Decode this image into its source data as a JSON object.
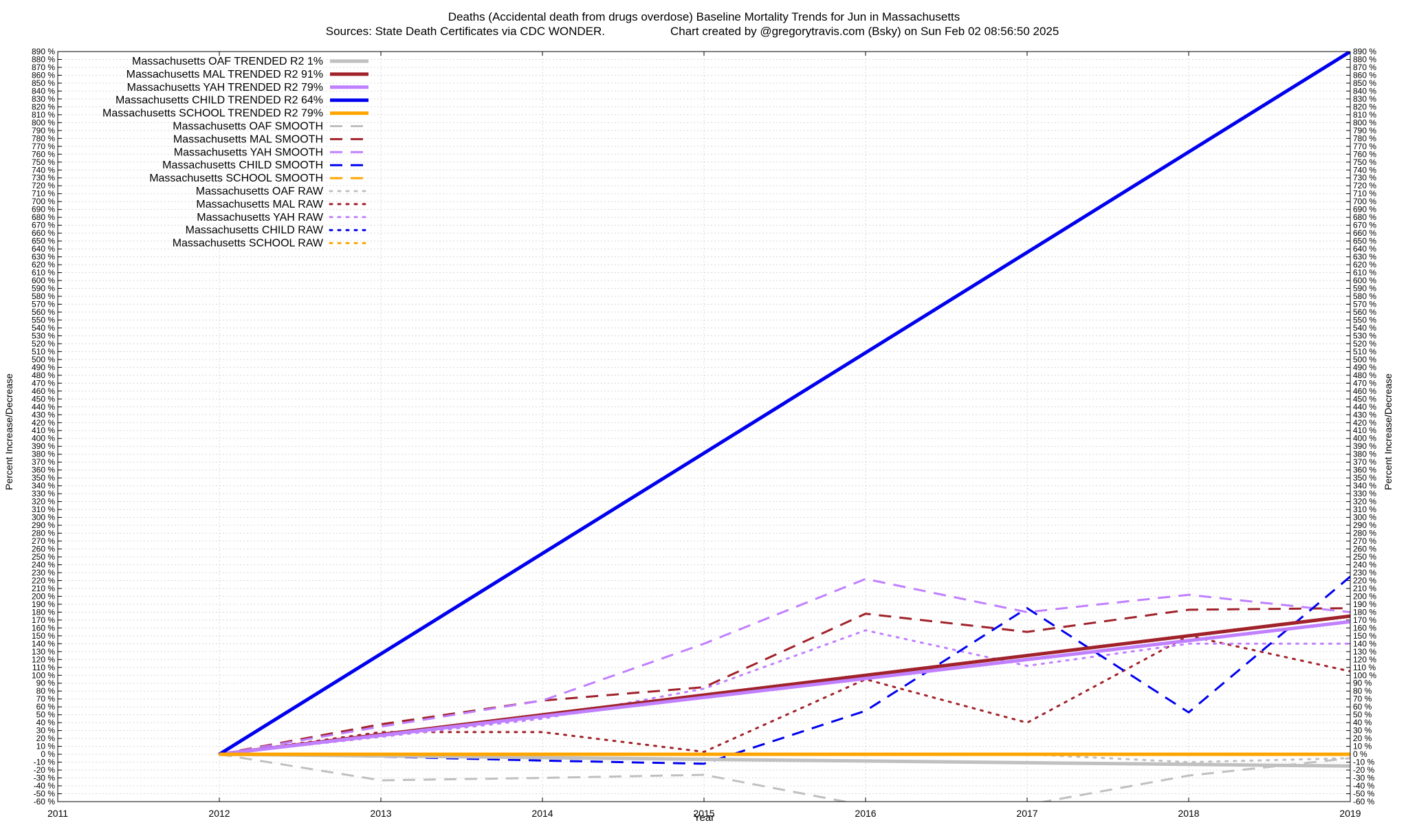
{
  "chart_data": {
    "type": "line",
    "title": "Deaths (Accidental death from drugs overdose)  Baseline Mortality Trends for Jun in Massachusetts",
    "subtitle_left": "Sources: State Death Certificates via CDC WONDER.",
    "subtitle_right": "Chart created by @gregorytravis.com (Bsky) on Sun Feb 02 08:56:50 2025",
    "xlabel": "Year",
    "ylabel_left": "Percent Increase/Decrease",
    "ylabel_right": "Percent Increase/Decrease",
    "xlim": [
      2011,
      2019
    ],
    "ylim": [
      -60,
      890
    ],
    "x_ticks": [
      2011,
      2012,
      2013,
      2014,
      2015,
      2016,
      2017,
      2018,
      2019
    ],
    "x_tick_labels": [
      "2011",
      "2012",
      "2013",
      "2014",
      "2015",
      "2016",
      "2017",
      "2018",
      "2019"
    ],
    "y_tick_step": 10,
    "y_tick_suffix": " %",
    "grid": true,
    "legend_position": "top-left",
    "series": [
      {
        "name": "Massachusetts OAF TRENDED R2  1%",
        "style": "solid",
        "color": "#c0c0c0",
        "x": [
          2012,
          2019
        ],
        "values": [
          0,
          -15
        ]
      },
      {
        "name": "Massachusetts MAL TRENDED R2  91%",
        "style": "solid",
        "color": "#a0222a",
        "x": [
          2012,
          2019
        ],
        "values": [
          0,
          175
        ]
      },
      {
        "name": "Massachusetts YAH TRENDED R2  79%",
        "style": "solid",
        "color": "#c080ff",
        "x": [
          2012,
          2019
        ],
        "values": [
          0,
          168
        ]
      },
      {
        "name": "Massachusetts CHILD TRENDED R2  64%",
        "style": "solid",
        "color": "#0000ee",
        "x": [
          2012,
          2019
        ],
        "values": [
          0,
          890
        ]
      },
      {
        "name": "Massachusetts SCHOOL TRENDED R2  79%",
        "style": "solid",
        "color": "#ffa500",
        "x": [
          2012,
          2019
        ],
        "values": [
          0,
          0
        ]
      },
      {
        "name": "Massachusetts OAF SMOOTH",
        "style": "dashed",
        "color": "#c0c0c0",
        "x": [
          2012,
          2013,
          2014,
          2015,
          2016,
          2017,
          2018,
          2019
        ],
        "values": [
          0,
          -33,
          -30,
          -26,
          -65,
          -64,
          -27,
          -5
        ]
      },
      {
        "name": "Massachusetts MAL SMOOTH",
        "style": "dashed",
        "color": "#a0222a",
        "x": [
          2012,
          2013,
          2014,
          2015,
          2016,
          2017,
          2018,
          2019
        ],
        "values": [
          0,
          38,
          68,
          85,
          178,
          155,
          183,
          185
        ]
      },
      {
        "name": "Massachusetts YAH SMOOTH",
        "style": "dashed",
        "color": "#c080ff",
        "x": [
          2012,
          2013,
          2014,
          2015,
          2016,
          2017,
          2018,
          2019
        ],
        "values": [
          0,
          35,
          68,
          140,
          222,
          180,
          202,
          180
        ]
      },
      {
        "name": "Massachusetts CHILD SMOOTH",
        "style": "dashed",
        "color": "#0000ee",
        "x": [
          2012,
          2013,
          2014,
          2015,
          2016,
          2017,
          2018,
          2019
        ],
        "values": [
          0,
          -3,
          -8,
          -12,
          55,
          185,
          53,
          225
        ]
      },
      {
        "name": "Massachusetts SCHOOL SMOOTH",
        "style": "dashed",
        "color": "#ffa500",
        "x": [
          2012,
          2019
        ],
        "values": [
          0,
          0
        ]
      },
      {
        "name": "Massachusetts OAF RAW",
        "style": "dotted",
        "color": "#c0c0c0",
        "x": [
          2012,
          2013,
          2014,
          2015,
          2016,
          2017,
          2018,
          2019
        ],
        "values": [
          0,
          0,
          0,
          0,
          0,
          0,
          -10,
          -5
        ]
      },
      {
        "name": "Massachusetts MAL RAW",
        "style": "dotted",
        "color": "#a0222a",
        "x": [
          2012,
          2013,
          2014,
          2015,
          2016,
          2017,
          2018,
          2019
        ],
        "values": [
          0,
          28,
          28,
          3,
          95,
          40,
          150,
          105
        ]
      },
      {
        "name": "Massachusetts YAH RAW",
        "style": "dotted",
        "color": "#c080ff",
        "x": [
          2012,
          2013,
          2014,
          2015,
          2016,
          2017,
          2018,
          2019
        ],
        "values": [
          0,
          22,
          45,
          83,
          157,
          112,
          140,
          140
        ]
      },
      {
        "name": "Massachusetts CHILD RAW",
        "style": "dotted",
        "color": "#0000ee",
        "x": [
          2012,
          2019
        ],
        "values": [
          0,
          0
        ]
      },
      {
        "name": "Massachusetts SCHOOL RAW",
        "style": "dotted",
        "color": "#ffa500",
        "x": [
          2012,
          2019
        ],
        "values": [
          0,
          0
        ]
      }
    ]
  }
}
